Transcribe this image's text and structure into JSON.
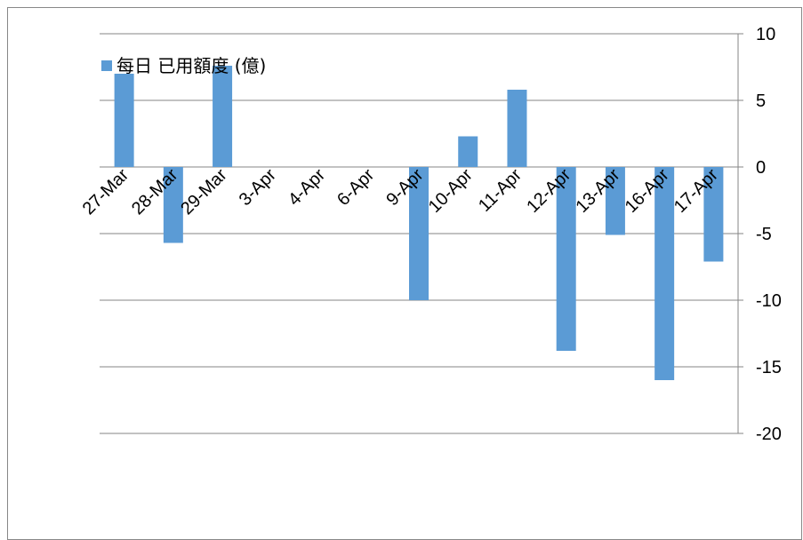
{
  "chart_data": {
    "type": "bar",
    "title": "",
    "xlabel": "",
    "ylabel": "",
    "categories": [
      "27-Mar",
      "28-Mar",
      "29-Mar",
      "3-Apr",
      "4-Apr",
      "6-Apr",
      "9-Apr",
      "10-Apr",
      "11-Apr",
      "12-Apr",
      "13-Apr",
      "16-Apr",
      "17-Apr"
    ],
    "series": [
      {
        "name": "每日 已用額度 (億)",
        "values": [
          7.0,
          -5.7,
          7.6,
          0,
          0,
          0,
          -10.0,
          2.3,
          5.8,
          -13.8,
          -5.1,
          -16.0,
          -7.1
        ],
        "color": "#5b9bd5"
      }
    ],
    "ylim": [
      -20,
      10
    ],
    "yticks": [
      10,
      5,
      0,
      -5,
      -10,
      -15,
      -20
    ],
    "y_axis_position": "right",
    "grid": true,
    "legend": "top-left",
    "gridline_color": "#868686"
  }
}
